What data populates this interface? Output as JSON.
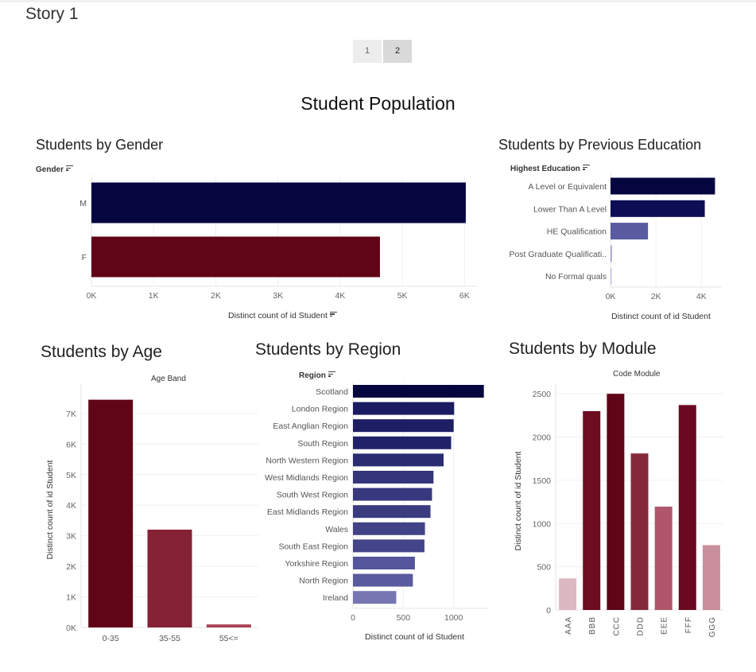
{
  "story": {
    "title": "Story 1",
    "pages": [
      "1",
      "2"
    ],
    "active_page": "2"
  },
  "dashboard": {
    "title": "Student Population"
  },
  "colors": {
    "navy": "#05053f",
    "maroon": "#600518"
  },
  "chart_data": [
    {
      "id": "gender",
      "type": "bar",
      "orientation": "horizontal",
      "title": "Students by Gender",
      "field_header": "Gender",
      "categories": [
        "M",
        "F"
      ],
      "values": [
        6020,
        4640
      ],
      "colors": [
        "#05053f",
        "#600518"
      ],
      "xlabel": "Distinct count of id Student",
      "xlim": [
        0,
        6200
      ],
      "xticks": [
        0,
        1000,
        2000,
        3000,
        4000,
        5000,
        6000
      ],
      "xtick_labels": [
        "0K",
        "1K",
        "2K",
        "3K",
        "4K",
        "5K",
        "6K"
      ],
      "grid": true
    },
    {
      "id": "education",
      "type": "bar",
      "orientation": "horizontal",
      "title": "Students by Previous Education",
      "field_header": "Highest Education",
      "categories": [
        "A Level or Equivalent",
        "Lower Than A Level",
        "HE Qualification",
        "Post Graduate Qualificati..",
        "No Formal quals"
      ],
      "values": [
        4600,
        4150,
        1650,
        60,
        30
      ],
      "colors": [
        "#05053f",
        "#0d0d56",
        "#5a5aa0",
        "#a3a3cf",
        "#c4c4e0"
      ],
      "xlabel": "Distinct count of id Student",
      "xlim": [
        0,
        4900
      ],
      "xticks": [
        0,
        2000,
        4000
      ],
      "xtick_labels": [
        "0K",
        "2K",
        "4K"
      ],
      "grid": true
    },
    {
      "id": "age",
      "type": "bar",
      "orientation": "vertical",
      "title": "Students by Age",
      "field_header": "Age Band",
      "categories": [
        "0-35",
        "35-55",
        "55<="
      ],
      "values": [
        7450,
        3200,
        100
      ],
      "colors": [
        "#600518",
        "#852334",
        "#a84155"
      ],
      "ylabel": "Distinct count of id Student",
      "ylim": [
        0,
        7700
      ],
      "yticks": [
        0,
        1000,
        2000,
        3000,
        4000,
        5000,
        6000,
        7000
      ],
      "ytick_labels": [
        "0K",
        "1K",
        "2K",
        "3K",
        "4K",
        "5K",
        "6K",
        "7K"
      ],
      "grid": true
    },
    {
      "id": "region",
      "type": "bar",
      "orientation": "horizontal",
      "title": "Students by Region",
      "field_header": "Region",
      "categories": [
        "Scotland",
        "London Region",
        "East Anglian Region",
        "South Region",
        "North Western Region",
        "West Midlands Region",
        "South West Region",
        "East Midlands Region",
        "Wales",
        "South East Region",
        "Yorkshire Region",
        "North Region",
        "Ireland"
      ],
      "values": [
        1300,
        1005,
        1000,
        975,
        900,
        800,
        785,
        770,
        715,
        710,
        615,
        595,
        430
      ],
      "colors": [
        "#05053f",
        "#1b1b62",
        "#1e1e65",
        "#21216a",
        "#2b2b72",
        "#35357b",
        "#38387e",
        "#3b3b80",
        "#424287",
        "#444489",
        "#55559b",
        "#5a5a9f",
        "#7676b3"
      ],
      "xlabel": "Distinct count of id Student",
      "xlim": [
        0,
        1350
      ],
      "xticks": [
        0,
        500,
        1000
      ],
      "xtick_labels": [
        "0",
        "500",
        "1000"
      ],
      "grid": true
    },
    {
      "id": "module",
      "type": "bar",
      "orientation": "vertical",
      "title": "Students by Module",
      "field_header": "Code Module",
      "categories": [
        "AAA",
        "BBB",
        "CCC",
        "DDD",
        "EEE",
        "FFF",
        "GGG"
      ],
      "tick_labels": [
        "AAA",
        "BBB",
        "CCC",
        "DDD",
        "EEE",
        "FFF",
        "GGG"
      ],
      "values": [
        365,
        2300,
        2500,
        1810,
        1195,
        2370,
        750
      ],
      "colors": [
        "#dcb9c1",
        "#6e0c22",
        "#600518",
        "#86283b",
        "#b0566a",
        "#6a0a20",
        "#c98f9c"
      ],
      "ylabel": "Distinct count of id Student",
      "ylim": [
        0,
        2520
      ],
      "yticks": [
        0,
        500,
        1000,
        1500,
        2000,
        2500
      ],
      "ytick_labels": [
        "0",
        "500",
        "1000",
        "1500",
        "2000",
        "2500"
      ],
      "grid": true
    }
  ]
}
